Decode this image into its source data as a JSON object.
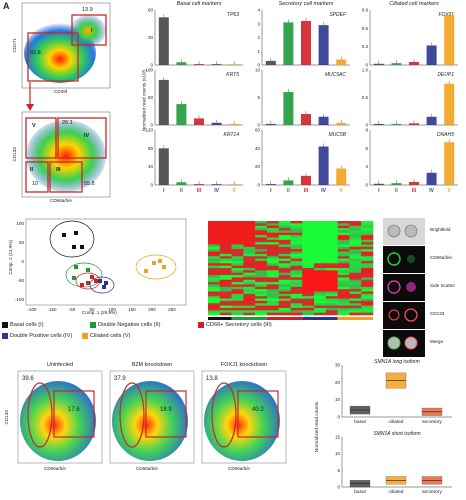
{
  "panel_letters": {
    "a": "A"
  },
  "flow_top": {
    "plot1": {
      "xlabel": "CD49f",
      "ylabel": "CD271",
      "gate_top": "13.9",
      "gate_top_id": "I",
      "gate_main": "83.8"
    },
    "plot2": {
      "xlabel": "CD66a/b/e",
      "ylabel": "CD133",
      "gate_v": "26.1",
      "gate_v_id": "V",
      "gate_iv_id": "IV",
      "gate_ii": "10",
      "gate_ii_id": "II",
      "gate_iii": "55.8",
      "gate_iii_id": "III"
    }
  },
  "marker_groups": [
    {
      "title": "Basal cell markers",
      "genes": [
        "TP63",
        "KRT5",
        "KRT14"
      ]
    },
    {
      "title": "Secretory cell markers",
      "genes": [
        "SPDEF",
        "MUC5AC",
        "MUC5B"
      ]
    },
    {
      "title": "Ciliated cell markers",
      "genes": [
        "FOXJ1",
        "DEUP1",
        "DNAH5"
      ]
    }
  ],
  "ylabel_shared": "Normalized read counts (x10³)",
  "category_labels": [
    "I",
    "II",
    "III",
    "IV",
    "V"
  ],
  "ticks_col1": [
    [
      "0",
      "30",
      "60"
    ],
    [
      "0",
      "50",
      "100"
    ],
    [
      "0",
      "40",
      "80",
      "120"
    ]
  ],
  "ticks_col2": [
    [
      "0",
      "1",
      "2",
      "3",
      "4"
    ],
    [
      "0",
      "5",
      "10"
    ],
    [
      "0",
      "20",
      "40",
      "60"
    ]
  ],
  "ticks_col3": [
    [
      "0",
      "0.3",
      "0.6",
      "0.9"
    ],
    [
      "0",
      "0.5",
      "1.0"
    ],
    [
      "0",
      "3",
      "6",
      "9"
    ]
  ],
  "colors": {
    "basal": "#444444",
    "dn": "#1e9a3a",
    "secretory": "#d01f27",
    "dp": "#2b3591",
    "ciliated": "#f4a21d"
  },
  "chart_data": [
    {
      "type": "bar",
      "title": "TP63",
      "categories": [
        "I",
        "II",
        "III",
        "IV",
        "V"
      ],
      "values": [
        52,
        3,
        1,
        0.5,
        0.3
      ]
    },
    {
      "type": "bar",
      "title": "KRT5",
      "categories": [
        "I",
        "II",
        "III",
        "IV",
        "V"
      ],
      "values": [
        82,
        38,
        12,
        4,
        2
      ]
    },
    {
      "type": "bar",
      "title": "KRT14",
      "categories": [
        "I",
        "II",
        "III",
        "IV",
        "V"
      ],
      "values": [
        80,
        6,
        2,
        1,
        0.5
      ]
    },
    {
      "type": "bar",
      "title": "SPDEF",
      "categories": [
        "I",
        "II",
        "III",
        "IV",
        "V"
      ],
      "values": [
        0.3,
        3.1,
        3.2,
        2.9,
        0.4
      ]
    },
    {
      "type": "bar",
      "title": "MUC5AC",
      "categories": [
        "I",
        "II",
        "III",
        "IV",
        "V"
      ],
      "values": [
        0.2,
        6,
        2,
        1.5,
        0.4
      ]
    },
    {
      "type": "bar",
      "title": "MUC5B",
      "categories": [
        "I",
        "II",
        "III",
        "IV",
        "V"
      ],
      "values": [
        1,
        5,
        10,
        42,
        18
      ]
    },
    {
      "type": "bar",
      "title": "FOXJ1",
      "categories": [
        "I",
        "II",
        "III",
        "IV",
        "V"
      ],
      "values": [
        0.02,
        0.03,
        0.05,
        0.32,
        0.82
      ]
    },
    {
      "type": "bar",
      "title": "DEUP1",
      "categories": [
        "I",
        "II",
        "III",
        "IV",
        "V"
      ],
      "values": [
        0.02,
        0.02,
        0.03,
        0.15,
        0.75
      ]
    },
    {
      "type": "bar",
      "title": "DNAH5",
      "categories": [
        "I",
        "II",
        "III",
        "IV",
        "V"
      ],
      "values": [
        0.2,
        0.3,
        0.5,
        2,
        7
      ]
    }
  ],
  "pca": {
    "xlabel": "Comp. 1 (26.9%)",
    "ylabel": "Comp. 2 (13.9%)",
    "xticks": [
      "-100",
      "-150",
      "-50",
      "50",
      "100",
      "150",
      "200",
      "250"
    ],
    "yticks": [
      "100",
      "50",
      "0",
      "-50",
      "-100"
    ]
  },
  "legend": [
    {
      "label": "Basal cells (I)",
      "color": "#111111"
    },
    {
      "label": "Double Negative cells (II)",
      "color": "#1e9a3a"
    },
    {
      "label": "CD66+ Secretory cells (III)",
      "color": "#d01f27"
    },
    {
      "label": "Double Positive cells (IV)",
      "color": "#2b3591"
    },
    {
      "label": "Ciliated cells (V)",
      "color": "#f4a21d"
    }
  ],
  "micro_labels": [
    "Brightfield",
    "CD66a/b/e",
    "Side Scatter",
    "CD133",
    "Merge"
  ],
  "flow_bottom": [
    {
      "title": "Uninfected",
      "left": "39.6",
      "right": "17.6"
    },
    {
      "title": "B2M knockdown",
      "left": "37.9",
      "right": "18.9"
    },
    {
      "title": "FOXJ1 knockdown",
      "left": "13.8",
      "right": "40.2"
    }
  ],
  "flow_bottom_axes": {
    "xlabel": "CD66a/b/e",
    "ylabel": "CD133"
  },
  "isoforms": [
    {
      "title": "SMN1A long isoform",
      "categories": [
        "basal",
        "ciliated",
        "secretory"
      ],
      "ticks": [
        "0",
        "10",
        "20",
        "30"
      ],
      "values": [
        4,
        21,
        3
      ]
    },
    {
      "title": "SMN1A short isoform",
      "categories": [
        "basal",
        "ciliated",
        "secretory"
      ],
      "ticks": [
        "0",
        "5",
        "10",
        "15"
      ],
      "values": [
        1,
        2,
        2
      ]
    }
  ],
  "isoform_ylabel": "Normalized read counts"
}
